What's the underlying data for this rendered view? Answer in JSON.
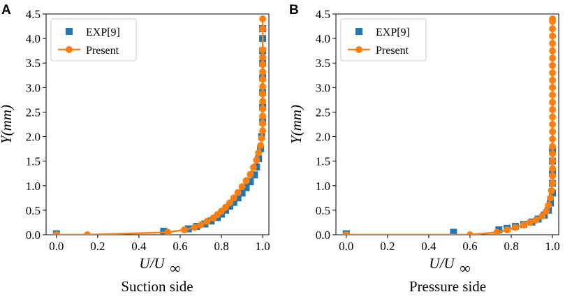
{
  "colors": {
    "exp": "#1f77b4",
    "present": "#ff7f0e",
    "axis": "#000000"
  },
  "chart_data": [
    {
      "panel_label": "A",
      "type": "scatter",
      "caption": "Suction side",
      "xlabel": "U/U",
      "xlabel_sub": "∞",
      "ylabel": "Y(mm)",
      "xlim": [
        -0.05,
        1.03
      ],
      "ylim": [
        0,
        4.5
      ],
      "xticks": [
        0.0,
        0.2,
        0.4,
        0.6,
        0.8,
        1.0
      ],
      "xtick_labels": [
        "0.0",
        "0.2",
        "0.4",
        "0.6",
        "0.8",
        "1.0"
      ],
      "yticks": [
        0.0,
        0.5,
        1.0,
        1.5,
        2.0,
        2.5,
        3.0,
        3.5,
        4.0,
        4.5
      ],
      "ytick_labels": [
        "0.0",
        "0.5",
        "1.0",
        "1.5",
        "2.0",
        "2.5",
        "3.0",
        "3.5",
        "4.0",
        "4.5"
      ],
      "legend_position": "top-left",
      "series": [
        {
          "name": "EXP[9]",
          "style": "square-marker",
          "x": [
            0.0,
            0.52,
            0.64,
            0.68,
            0.72,
            0.75,
            0.78,
            0.8,
            0.82,
            0.84,
            0.86,
            0.88,
            0.9,
            0.92,
            0.94,
            0.96,
            0.97,
            0.98,
            0.99,
            0.995,
            1.0,
            1.0,
            1.0,
            1.0,
            1.0,
            1.0,
            1.0,
            1.0
          ],
          "y": [
            0.02,
            0.07,
            0.12,
            0.17,
            0.22,
            0.28,
            0.35,
            0.42,
            0.5,
            0.58,
            0.66,
            0.75,
            0.85,
            0.96,
            1.08,
            1.22,
            1.38,
            1.55,
            1.75,
            2.0,
            2.3,
            2.6,
            2.9,
            3.2,
            3.5,
            3.75,
            4.0,
            4.2
          ]
        },
        {
          "name": "Present",
          "style": "line-circle",
          "x": [
            0.0,
            0.15,
            0.54,
            0.62,
            0.67,
            0.7,
            0.73,
            0.76,
            0.78,
            0.8,
            0.82,
            0.84,
            0.86,
            0.88,
            0.9,
            0.92,
            0.94,
            0.955,
            0.97,
            0.98,
            0.99,
            0.995,
            1.0,
            1.0,
            1.0,
            1.0,
            1.0,
            1.0,
            1.0,
            1.0,
            1.0,
            1.0,
            1.0,
            1.0,
            1.0,
            1.0
          ],
          "y": [
            0.0,
            0.0,
            0.05,
            0.1,
            0.15,
            0.2,
            0.27,
            0.34,
            0.41,
            0.48,
            0.56,
            0.65,
            0.75,
            0.86,
            0.98,
            1.1,
            1.23,
            1.37,
            1.52,
            1.67,
            1.82,
            1.97,
            2.12,
            2.27,
            2.42,
            2.57,
            2.72,
            2.87,
            3.02,
            3.17,
            3.32,
            3.47,
            3.62,
            3.77,
            4.2,
            4.4
          ]
        }
      ]
    },
    {
      "panel_label": "B",
      "type": "scatter",
      "caption": "Pressure side",
      "xlabel": "U/U",
      "xlabel_sub": "∞",
      "ylabel": "Y(mm)",
      "xlim": [
        -0.05,
        1.03
      ],
      "ylim": [
        0,
        4.5
      ],
      "xticks": [
        0.0,
        0.2,
        0.4,
        0.6,
        0.8,
        1.0
      ],
      "xtick_labels": [
        "0.0",
        "0.2",
        "0.4",
        "0.6",
        "0.8",
        "1.0"
      ],
      "yticks": [
        0.0,
        0.5,
        1.0,
        1.5,
        2.0,
        2.5,
        3.0,
        3.5,
        4.0,
        4.5
      ],
      "ytick_labels": [
        "0.0",
        "0.5",
        "1.0",
        "1.5",
        "2.0",
        "2.5",
        "3.0",
        "3.5",
        "4.0",
        "4.5"
      ],
      "legend_position": "top-left",
      "series": [
        {
          "name": "EXP[9]",
          "style": "square-marker",
          "x": [
            0.0,
            0.52,
            0.74,
            0.78,
            0.82,
            0.86,
            0.9,
            0.93,
            0.96,
            0.98,
            0.99,
            1.0,
            1.0,
            1.0,
            1.0,
            1.0
          ],
          "y": [
            0.02,
            0.05,
            0.1,
            0.13,
            0.17,
            0.21,
            0.26,
            0.32,
            0.4,
            0.5,
            0.65,
            0.85,
            1.05,
            1.25,
            1.5,
            1.7
          ]
        },
        {
          "name": "Present",
          "style": "line-circle",
          "x": [
            0.0,
            0.6,
            0.73,
            0.78,
            0.82,
            0.86,
            0.89,
            0.92,
            0.95,
            0.97,
            0.98,
            0.99,
            0.995,
            1.0,
            1.0,
            1.0,
            1.0,
            1.0,
            1.0,
            1.0,
            1.0,
            1.0,
            1.0,
            1.0,
            1.0,
            1.0,
            1.0,
            1.0,
            1.0,
            1.0,
            1.0,
            1.0,
            1.0,
            1.0,
            1.0,
            1.0,
            1.0
          ],
          "y": [
            0.0,
            0.0,
            0.05,
            0.1,
            0.15,
            0.2,
            0.25,
            0.3,
            0.38,
            0.48,
            0.6,
            0.75,
            0.9,
            1.05,
            1.2,
            1.35,
            1.5,
            1.65,
            1.8,
            1.95,
            2.1,
            2.25,
            2.4,
            2.55,
            2.7,
            2.85,
            3.0,
            3.15,
            3.3,
            3.45,
            3.6,
            3.75,
            3.9,
            4.05,
            4.2,
            4.35,
            4.4
          ]
        }
      ]
    }
  ]
}
